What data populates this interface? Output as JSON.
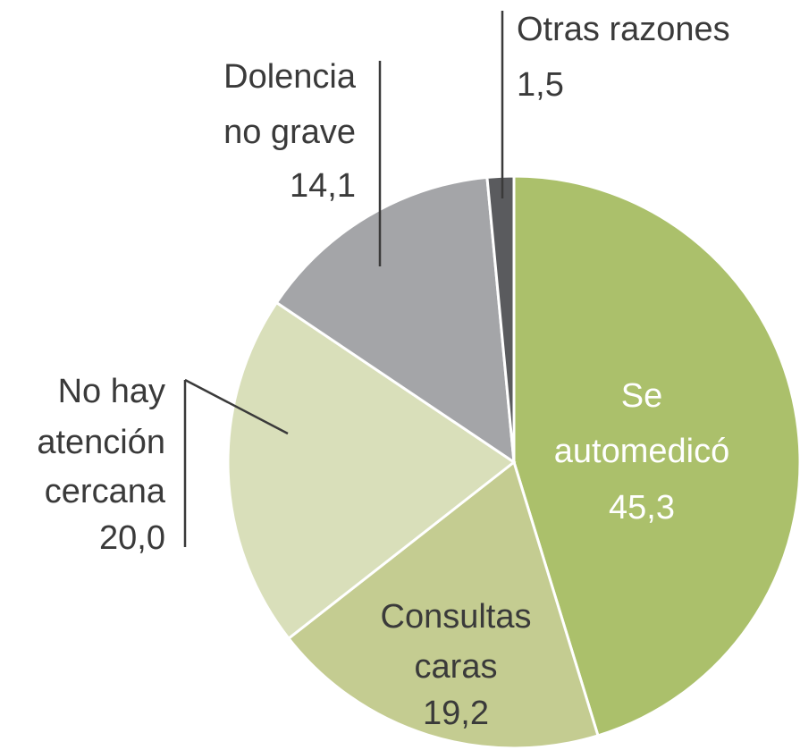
{
  "chart_data": {
    "type": "pie",
    "categories": [
      "Se\nautomedicó",
      "Consultas\ncaras",
      "No hay\natención\ncercana",
      "Dolencia\nno grave",
      "Otras razones"
    ],
    "values": [
      45.3,
      19.2,
      20.0,
      14.1,
      1.5
    ],
    "value_labels": [
      "45,3",
      "19,2",
      "20,0",
      "14,1",
      "1,5"
    ],
    "colors": [
      "#abc06b",
      "#c4cc91",
      "#d9dfba",
      "#a4a5a8",
      "#5a5b5e"
    ]
  }
}
